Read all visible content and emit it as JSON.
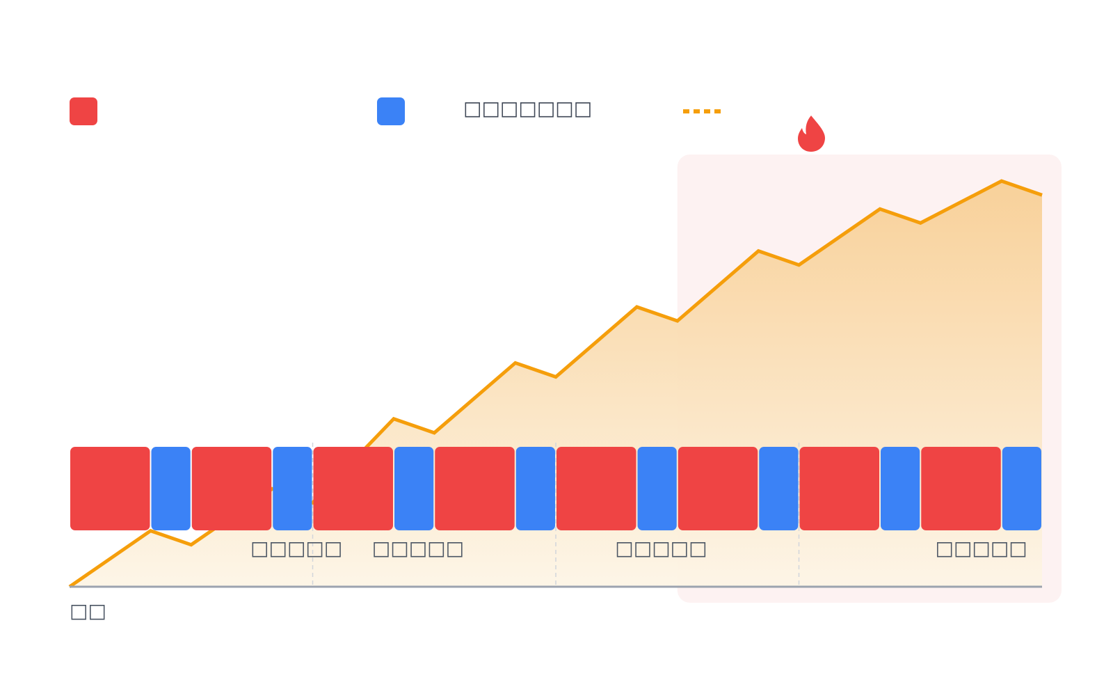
{
  "chart_data": {
    "type": "area",
    "title": "",
    "xlabel": "",
    "ylabel": "",
    "colors": {
      "work": "#ef4444",
      "rest": "#3b82f6",
      "line": "#f59e0b",
      "area_top": "#f8cf95",
      "area_bottom": "#fdf5e6",
      "highlight": "#fdf2f2",
      "axis": "#9ca3af",
      "grid": "#d1d5db",
      "text_dark": "#3f4756",
      "text_mid": "#4b5563"
    },
    "legend": [
      {
        "kind": "swatch",
        "color": "#ef4444",
        "label": ""
      },
      {
        "kind": "swatch",
        "color": "#3b82f6",
        "label": "□□□□□□□"
      },
      {
        "kind": "dotted-line",
        "color": "#f59e0b",
        "label": ""
      }
    ],
    "blocks": [
      {
        "type": "work",
        "duration": 2
      },
      {
        "type": "rest",
        "duration": 1
      },
      {
        "type": "work",
        "duration": 2
      },
      {
        "type": "rest",
        "duration": 1
      },
      {
        "type": "work",
        "duration": 2
      },
      {
        "type": "rest",
        "duration": 1
      },
      {
        "type": "work",
        "duration": 2
      },
      {
        "type": "rest",
        "duration": 1
      },
      {
        "type": "work",
        "duration": 2
      },
      {
        "type": "rest",
        "duration": 1
      },
      {
        "type": "work",
        "duration": 2
      },
      {
        "type": "rest",
        "duration": 1
      },
      {
        "type": "work",
        "duration": 2
      },
      {
        "type": "rest",
        "duration": 1
      },
      {
        "type": "work",
        "duration": 2
      },
      {
        "type": "rest",
        "duration": 1
      }
    ],
    "x": [
      0,
      2,
      3,
      5,
      6,
      8,
      9,
      11,
      12,
      14,
      15,
      17,
      18,
      20,
      21,
      23,
      24
    ],
    "y": [
      0,
      4,
      3,
      7,
      6,
      12,
      11,
      16,
      15,
      20,
      19,
      24,
      23,
      27,
      26,
      29,
      28
    ],
    "xlim": [
      0,
      24
    ],
    "ylim": [
      0,
      30
    ],
    "phase_dividers": [
      6,
      12,
      18
    ],
    "highlight_range": [
      15,
      24
    ],
    "highlight_icon": "flame-icon",
    "x_annotations": [
      {
        "x": 5.6,
        "label": "□□□□□"
      },
      {
        "x": 8.6,
        "label": "□□□□□"
      },
      {
        "x": 14.6,
        "label": "□□□□□"
      },
      {
        "x": 22.5,
        "label": "□□□□□"
      }
    ],
    "start_label": "□□"
  }
}
